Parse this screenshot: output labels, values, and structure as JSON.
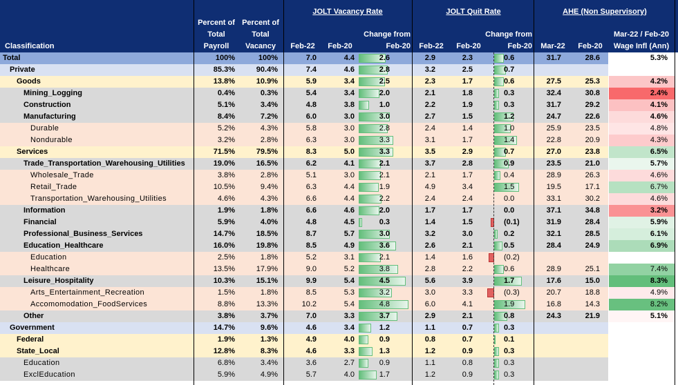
{
  "header": {
    "classification": "Classification",
    "pct_payroll": [
      "Percent of",
      "Total",
      "Payroll"
    ],
    "pct_vacancy": [
      "Percent of",
      "Total",
      "Vacancy"
    ],
    "jolt_vacancy": "JOLT Vacancy Rate",
    "jolt_quit": "JOLT Quit Rate",
    "ahe": "AHE (Non Supervisory)",
    "feb22": "Feb-22",
    "feb20": "Feb-20",
    "change_from": "Change from",
    "change_feb20": "Feb-20",
    "mar22": "Mar-22",
    "wage_top": "Mar-22 / Feb-20",
    "wage_bottom": "Wage Infl (Ann)"
  },
  "rows": [
    {
      "label": "Total",
      "level": 0,
      "bold": true,
      "payroll": "100%",
      "vacancy": "100%",
      "v22": "7.0",
      "v20": "4.4",
      "vchg": "2.6",
      "vchg_n": 2.6,
      "q22": "2.9",
      "q20": "2.3",
      "qchg": "0.6",
      "qchg_n": 0.6,
      "a22": "31.7",
      "a20": "28.6",
      "wage": "5.3%",
      "wage_n": 5.3
    },
    {
      "label": "Private",
      "level": 1,
      "bold": true,
      "payroll": "85.3%",
      "vacancy": "90.4%",
      "v22": "7.4",
      "v20": "4.6",
      "vchg": "2.8",
      "vchg_n": 2.8,
      "q22": "3.2",
      "q20": "2.5",
      "qchg": "0.7",
      "qchg_n": 0.7,
      "a22": "",
      "a20": "",
      "wage": "",
      "wage_n": null
    },
    {
      "label": "Goods",
      "level": 2,
      "bold": true,
      "payroll": "13.8%",
      "vacancy": "10.9%",
      "v22": "5.9",
      "v20": "3.4",
      "vchg": "2.5",
      "vchg_n": 2.5,
      "q22": "2.3",
      "q20": "1.7",
      "qchg": "0.6",
      "qchg_n": 0.6,
      "a22": "27.5",
      "a20": "25.3",
      "wage": "4.2%",
      "wage_n": 4.2
    },
    {
      "label": "Mining_Logging",
      "level": 3,
      "bold": true,
      "payroll": "0.4%",
      "vacancy": "0.3%",
      "v22": "5.4",
      "v20": "3.4",
      "vchg": "2.0",
      "vchg_n": 2.0,
      "q22": "2.1",
      "q20": "1.8",
      "qchg": "0.3",
      "qchg_n": 0.3,
      "a22": "32.4",
      "a20": "30.8",
      "wage": "2.4%",
      "wage_n": 2.4
    },
    {
      "label": "Construction",
      "level": 3,
      "bold": true,
      "payroll": "5.1%",
      "vacancy": "3.4%",
      "v22": "4.8",
      "v20": "3.8",
      "vchg": "1.0",
      "vchg_n": 1.0,
      "q22": "2.2",
      "q20": "1.9",
      "qchg": "0.3",
      "qchg_n": 0.3,
      "a22": "31.7",
      "a20": "29.2",
      "wage": "4.1%",
      "wage_n": 4.1
    },
    {
      "label": "Manufacturing",
      "level": 3,
      "bold": true,
      "payroll": "8.4%",
      "vacancy": "7.2%",
      "v22": "6.0",
      "v20": "3.0",
      "vchg": "3.0",
      "vchg_n": 3.0,
      "q22": "2.7",
      "q20": "1.5",
      "qchg": "1.2",
      "qchg_n": 1.2,
      "a22": "24.7",
      "a20": "22.6",
      "wage": "4.6%",
      "wage_n": 4.6
    },
    {
      "label": "Durable",
      "level": 4,
      "bold": false,
      "payroll": "5.2%",
      "vacancy": "4.3%",
      "v22": "5.8",
      "v20": "3.0",
      "vchg": "2.8",
      "vchg_n": 2.8,
      "q22": "2.4",
      "q20": "1.4",
      "qchg": "1.0",
      "qchg_n": 1.0,
      "a22": "25.9",
      "a20": "23.5",
      "wage": "4.8%",
      "wage_n": 4.8
    },
    {
      "label": "Nondurable",
      "level": 4,
      "bold": false,
      "payroll": "3.2%",
      "vacancy": "2.8%",
      "v22": "6.3",
      "v20": "3.0",
      "vchg": "3.3",
      "vchg_n": 3.3,
      "q22": "3.1",
      "q20": "1.7",
      "qchg": "1.4",
      "qchg_n": 1.4,
      "a22": "22.8",
      "a20": "20.9",
      "wage": "4.3%",
      "wage_n": 4.3
    },
    {
      "label": "Services",
      "level": 2,
      "bold": true,
      "payroll": "71.5%",
      "vacancy": "79.5%",
      "v22": "8.3",
      "v20": "5.0",
      "vchg": "3.3",
      "vchg_n": 3.3,
      "q22": "3.5",
      "q20": "2.9",
      "qchg": "0.7",
      "qchg_n": 0.7,
      "a22": "27.0",
      "a20": "23.8",
      "wage": "6.5%",
      "wage_n": 6.5
    },
    {
      "label": "Trade_Transportation_Warehousing_Utilities",
      "level": 3,
      "bold": true,
      "payroll": "19.0%",
      "vacancy": "16.5%",
      "v22": "6.2",
      "v20": "4.1",
      "vchg": "2.1",
      "vchg_n": 2.1,
      "q22": "3.7",
      "q20": "2.8",
      "qchg": "0.9",
      "qchg_n": 0.9,
      "a22": "23.5",
      "a20": "21.0",
      "wage": "5.7%",
      "wage_n": 5.7
    },
    {
      "label": "Wholesale_Trade",
      "level": 4,
      "bold": false,
      "payroll": "3.8%",
      "vacancy": "2.8%",
      "v22": "5.1",
      "v20": "3.0",
      "vchg": "2.1",
      "vchg_n": 2.1,
      "q22": "2.1",
      "q20": "1.7",
      "qchg": "0.4",
      "qchg_n": 0.4,
      "a22": "28.9",
      "a20": "26.3",
      "wage": "4.6%",
      "wage_n": 4.6
    },
    {
      "label": "Retail_Trade",
      "level": 4,
      "bold": false,
      "payroll": "10.5%",
      "vacancy": "9.4%",
      "v22": "6.3",
      "v20": "4.4",
      "vchg": "1.9",
      "vchg_n": 1.9,
      "q22": "4.9",
      "q20": "3.4",
      "qchg": "1.5",
      "qchg_n": 1.5,
      "a22": "19.5",
      "a20": "17.1",
      "wage": "6.7%",
      "wage_n": 6.7
    },
    {
      "label": "Transportation_Warehousing_Utilities",
      "level": 4,
      "bold": false,
      "payroll": "4.6%",
      "vacancy": "4.3%",
      "v22": "6.6",
      "v20": "4.4",
      "vchg": "2.2",
      "vchg_n": 2.2,
      "q22": "2.4",
      "q20": "2.4",
      "qchg": "0.0",
      "qchg_n": 0.0,
      "a22": "33.1",
      "a20": "30.2",
      "wage": "4.6%",
      "wage_n": 4.6
    },
    {
      "label": "Information",
      "level": 3,
      "bold": true,
      "payroll": "1.9%",
      "vacancy": "1.8%",
      "v22": "6.6",
      "v20": "4.6",
      "vchg": "2.0",
      "vchg_n": 2.0,
      "q22": "1.7",
      "q20": "1.7",
      "qchg": "0.0",
      "qchg_n": 0.0,
      "a22": "37.1",
      "a20": "34.8",
      "wage": "3.2%",
      "wage_n": 3.2
    },
    {
      "label": "Financial",
      "level": 3,
      "bold": true,
      "payroll": "5.9%",
      "vacancy": "4.0%",
      "v22": "4.8",
      "v20": "4.5",
      "vchg": "0.3",
      "vchg_n": 0.3,
      "q22": "1.4",
      "q20": "1.5",
      "qchg": "(0.1)",
      "qchg_n": -0.1,
      "a22": "31.9",
      "a20": "28.4",
      "wage": "5.9%",
      "wage_n": 5.9
    },
    {
      "label": "Professional_Business_Services",
      "level": 3,
      "bold": true,
      "payroll": "14.7%",
      "vacancy": "18.5%",
      "v22": "8.7",
      "v20": "5.7",
      "vchg": "3.0",
      "vchg_n": 3.0,
      "q22": "3.2",
      "q20": "3.0",
      "qchg": "0.2",
      "qchg_n": 0.2,
      "a22": "32.1",
      "a20": "28.5",
      "wage": "6.1%",
      "wage_n": 6.1
    },
    {
      "label": "Education_Healthcare",
      "level": 3,
      "bold": true,
      "payroll": "16.0%",
      "vacancy": "19.8%",
      "v22": "8.5",
      "v20": "4.9",
      "vchg": "3.6",
      "vchg_n": 3.6,
      "q22": "2.6",
      "q20": "2.1",
      "qchg": "0.5",
      "qchg_n": 0.5,
      "a22": "28.4",
      "a20": "24.9",
      "wage": "6.9%",
      "wage_n": 6.9
    },
    {
      "label": "Education",
      "level": 4,
      "bold": false,
      "payroll": "2.5%",
      "vacancy": "1.8%",
      "v22": "5.2",
      "v20": "3.1",
      "vchg": "2.1",
      "vchg_n": 2.1,
      "q22": "1.4",
      "q20": "1.6",
      "qchg": "(0.2)",
      "qchg_n": -0.2,
      "a22": "",
      "a20": "",
      "wage": "",
      "wage_n": null
    },
    {
      "label": "Healthcare",
      "level": 4,
      "bold": false,
      "payroll": "13.5%",
      "vacancy": "17.9%",
      "v22": "9.0",
      "v20": "5.2",
      "vchg": "3.8",
      "vchg_n": 3.8,
      "q22": "2.8",
      "q20": "2.2",
      "qchg": "0.6",
      "qchg_n": 0.6,
      "a22": "28.9",
      "a20": "25.1",
      "wage": "7.4%",
      "wage_n": 7.4
    },
    {
      "label": "Leisure_Hospitality",
      "level": 3,
      "bold": true,
      "payroll": "10.3%",
      "vacancy": "15.1%",
      "v22": "9.9",
      "v20": "5.4",
      "vchg": "4.5",
      "vchg_n": 4.5,
      "q22": "5.6",
      "q20": "3.9",
      "qchg": "1.7",
      "qchg_n": 1.7,
      "a22": "17.6",
      "a20": "15.0",
      "wage": "8.3%",
      "wage_n": 8.3
    },
    {
      "label": "Arts_Entertainment_Recreation",
      "level": 4,
      "bold": false,
      "payroll": "1.5%",
      "vacancy": "1.8%",
      "v22": "8.5",
      "v20": "5.3",
      "vchg": "3.2",
      "vchg_n": 3.2,
      "q22": "3.0",
      "q20": "3.3",
      "qchg": "(0.3)",
      "qchg_n": -0.3,
      "a22": "20.7",
      "a20": "18.8",
      "wage": "4.9%",
      "wage_n": 4.9
    },
    {
      "label": "Accomomodation_FoodServices",
      "level": 4,
      "bold": false,
      "payroll": "8.8%",
      "vacancy": "13.3%",
      "v22": "10.2",
      "v20": "5.4",
      "vchg": "4.8",
      "vchg_n": 4.8,
      "q22": "6.0",
      "q20": "4.1",
      "qchg": "1.9",
      "qchg_n": 1.9,
      "a22": "16.8",
      "a20": "14.3",
      "wage": "8.2%",
      "wage_n": 8.2
    },
    {
      "label": "Other",
      "level": 3,
      "bold": true,
      "payroll": "3.8%",
      "vacancy": "3.7%",
      "v22": "7.0",
      "v20": "3.3",
      "vchg": "3.7",
      "vchg_n": 3.7,
      "q22": "2.9",
      "q20": "2.1",
      "qchg": "0.8",
      "qchg_n": 0.8,
      "a22": "24.3",
      "a20": "21.9",
      "wage": "5.1%",
      "wage_n": 5.1
    },
    {
      "label": "Government",
      "level": 1,
      "bold": true,
      "payroll": "14.7%",
      "vacancy": "9.6%",
      "v22": "4.6",
      "v20": "3.4",
      "vchg": "1.2",
      "vchg_n": 1.2,
      "q22": "1.1",
      "q20": "0.7",
      "qchg": "0.3",
      "qchg_n": 0.3,
      "a22": "",
      "a20": "",
      "wage": "",
      "wage_n": null
    },
    {
      "label": "Federal",
      "level": 2,
      "bold": true,
      "payroll": "1.9%",
      "vacancy": "1.3%",
      "v22": "4.9",
      "v20": "4.0",
      "vchg": "0.9",
      "vchg_n": 0.9,
      "q22": "0.8",
      "q20": "0.7",
      "qchg": "0.1",
      "qchg_n": 0.1,
      "a22": "",
      "a20": "",
      "wage": "",
      "wage_n": null
    },
    {
      "label": "State_Local",
      "level": 2,
      "bold": true,
      "payroll": "12.8%",
      "vacancy": "8.3%",
      "v22": "4.6",
      "v20": "3.3",
      "vchg": "1.3",
      "vchg_n": 1.3,
      "q22": "1.2",
      "q20": "0.9",
      "qchg": "0.3",
      "qchg_n": 0.3,
      "a22": "",
      "a20": "",
      "wage": "",
      "wage_n": null
    },
    {
      "label": "Education",
      "level": 3,
      "bold": false,
      "payroll": "6.8%",
      "vacancy": "3.4%",
      "v22": "3.6",
      "v20": "2.7",
      "vchg": "0.9",
      "vchg_n": 0.9,
      "q22": "1.1",
      "q20": "0.8",
      "qchg": "0.3",
      "qchg_n": 0.3,
      "a22": "",
      "a20": "",
      "wage": "",
      "wage_n": null
    },
    {
      "label": "ExclEducation",
      "level": 3,
      "bold": false,
      "payroll": "5.9%",
      "vacancy": "4.9%",
      "v22": "5.7",
      "v20": "4.0",
      "vchg": "1.7",
      "vchg_n": 1.7,
      "q22": "1.2",
      "q20": "0.9",
      "qchg": "0.3",
      "qchg_n": 0.3,
      "a22": "",
      "a20": "",
      "wage": "",
      "wage_n": null
    }
  ],
  "colors": {
    "header_bg": "#0f2e73",
    "total_bg": "#8ea9db",
    "level1_bg": "#d9e1f2",
    "level2_bg": "#fff2cc",
    "level3_bg": "#d9d9d9",
    "level4_bg": "#fce4d6",
    "bar_green": "#63be7b",
    "bar_red": "#e06060",
    "wage_high": "#63be7b",
    "wage_low": "#f8696b",
    "wage_mid": "#ffffff"
  }
}
